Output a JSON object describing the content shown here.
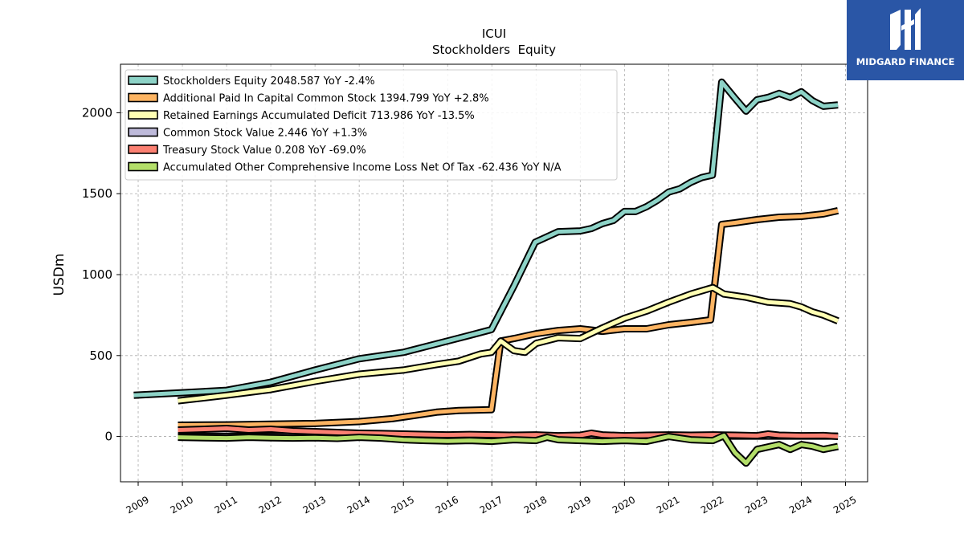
{
  "logo": {
    "text": "MIDGARD FINANCE",
    "bg_color": "#2a56a6"
  },
  "chart_data": {
    "type": "line",
    "title": "ICUI",
    "subtitle": "Stockholders  Equity",
    "xlabel": "",
    "ylabel": "USDm",
    "xlim": [
      2008.6,
      2025.5
    ],
    "ylim": [
      -280,
      2300
    ],
    "x_ticks": [
      "2009",
      "2010",
      "2011",
      "2012",
      "2013",
      "2014",
      "2015",
      "2016",
      "2017",
      "2018",
      "2019",
      "2020",
      "2021",
      "2022",
      "2023",
      "2024",
      "2025"
    ],
    "y_ticks": [
      0,
      500,
      1000,
      1500,
      2000
    ],
    "grid": true,
    "legend_position": "top-left",
    "series": [
      {
        "name": "Stockholders Equity  2048.587 YoY -2.4%",
        "color": "#8dd3c7",
        "points": [
          [
            2008.9,
            255
          ],
          [
            2010,
            270
          ],
          [
            2011,
            285
          ],
          [
            2012,
            335
          ],
          [
            2013,
            410
          ],
          [
            2014,
            480
          ],
          [
            2015,
            520
          ],
          [
            2016,
            590
          ],
          [
            2016.5,
            625
          ],
          [
            2016.99,
            660
          ],
          [
            2017.5,
            930
          ],
          [
            2017.98,
            1200
          ],
          [
            2018.5,
            1265
          ],
          [
            2019,
            1270
          ],
          [
            2019.25,
            1285
          ],
          [
            2019.5,
            1315
          ],
          [
            2019.75,
            1335
          ],
          [
            2020,
            1390
          ],
          [
            2020.25,
            1390
          ],
          [
            2020.5,
            1420
          ],
          [
            2020.75,
            1460
          ],
          [
            2021,
            1510
          ],
          [
            2021.25,
            1530
          ],
          [
            2021.5,
            1570
          ],
          [
            2021.75,
            1600
          ],
          [
            2021.99,
            1615
          ],
          [
            2022.2,
            2190
          ],
          [
            2022.5,
            2090
          ],
          [
            2022.75,
            2010
          ],
          [
            2023,
            2080
          ],
          [
            2023.25,
            2095
          ],
          [
            2023.5,
            2120
          ],
          [
            2023.75,
            2095
          ],
          [
            2024,
            2130
          ],
          [
            2024.25,
            2075
          ],
          [
            2024.5,
            2040
          ],
          [
            2024.83,
            2048.587
          ]
        ]
      },
      {
        "name": "Additional Paid In Capital Common Stock  1394.799 YoY +2.8%",
        "color": "#fdb462",
        "points": [
          [
            2009.9,
            70
          ],
          [
            2011,
            72
          ],
          [
            2012,
            76
          ],
          [
            2013,
            80
          ],
          [
            2014,
            92
          ],
          [
            2014.75,
            110
          ],
          [
            2015.25,
            130
          ],
          [
            2015.75,
            150
          ],
          [
            2016.25,
            160
          ],
          [
            2016.99,
            165
          ],
          [
            2017.2,
            590
          ],
          [
            2017.5,
            605
          ],
          [
            2018,
            635
          ],
          [
            2018.5,
            655
          ],
          [
            2019,
            665
          ],
          [
            2019.5,
            650
          ],
          [
            2020,
            665
          ],
          [
            2020.5,
            665
          ],
          [
            2021,
            690
          ],
          [
            2021.5,
            705
          ],
          [
            2021.95,
            720
          ],
          [
            2022.2,
            1310
          ],
          [
            2022.5,
            1320
          ],
          [
            2023,
            1340
          ],
          [
            2023.5,
            1355
          ],
          [
            2024,
            1360
          ],
          [
            2024.5,
            1375
          ],
          [
            2024.83,
            1394.799
          ]
        ]
      },
      {
        "name": "Retained Earnings Accumulated Deficit  713.986 YoY -13.5%",
        "color": "#ffffb3",
        "points": [
          [
            2009.9,
            220
          ],
          [
            2011,
            255
          ],
          [
            2012,
            290
          ],
          [
            2013,
            340
          ],
          [
            2014,
            385
          ],
          [
            2015,
            410
          ],
          [
            2015.75,
            445
          ],
          [
            2016.25,
            465
          ],
          [
            2016.75,
            510
          ],
          [
            2016.99,
            520
          ],
          [
            2017.2,
            590
          ],
          [
            2017.5,
            530
          ],
          [
            2017.75,
            520
          ],
          [
            2018,
            575
          ],
          [
            2018.5,
            610
          ],
          [
            2019,
            605
          ],
          [
            2019.5,
            670
          ],
          [
            2020,
            730
          ],
          [
            2020.5,
            775
          ],
          [
            2021,
            830
          ],
          [
            2021.5,
            880
          ],
          [
            2022,
            920
          ],
          [
            2022.25,
            880
          ],
          [
            2022.75,
            860
          ],
          [
            2023.25,
            830
          ],
          [
            2023.75,
            820
          ],
          [
            2024,
            800
          ],
          [
            2024.25,
            770
          ],
          [
            2024.5,
            750
          ],
          [
            2024.83,
            713.986
          ]
        ]
      },
      {
        "name": "Common Stock Value  2.446 YoY +1.3%",
        "color": "#bebada",
        "points": [
          [
            2009.9,
            1
          ],
          [
            2012,
            1.5
          ],
          [
            2015,
            1.8
          ],
          [
            2018,
            2.1
          ],
          [
            2021,
            2.3
          ],
          [
            2024.83,
            2.446
          ]
        ]
      },
      {
        "name": "Treasury Stock Value  0.208 YoY -69.0%",
        "color": "#fb8072",
        "points": [
          [
            2009.9,
            40
          ],
          [
            2010.5,
            45
          ],
          [
            2011,
            50
          ],
          [
            2011.5,
            40
          ],
          [
            2012,
            45
          ],
          [
            2012.5,
            35
          ],
          [
            2013,
            30
          ],
          [
            2013.5,
            25
          ],
          [
            2014,
            20
          ],
          [
            2014.5,
            18
          ],
          [
            2015,
            15
          ],
          [
            2015.5,
            12
          ],
          [
            2016,
            10
          ],
          [
            2016.5,
            12
          ],
          [
            2017,
            10
          ],
          [
            2017.5,
            8
          ],
          [
            2018,
            10
          ],
          [
            2018.5,
            5
          ],
          [
            2019,
            8
          ],
          [
            2019.25,
            20
          ],
          [
            2019.5,
            10
          ],
          [
            2020,
            5
          ],
          [
            2020.5,
            8
          ],
          [
            2021,
            10
          ],
          [
            2021.5,
            8
          ],
          [
            2022,
            10
          ],
          [
            2022.5,
            8
          ],
          [
            2023,
            5
          ],
          [
            2023.25,
            15
          ],
          [
            2023.5,
            8
          ],
          [
            2024,
            5
          ],
          [
            2024.5,
            6
          ],
          [
            2024.83,
            0.208
          ]
        ]
      },
      {
        "name": "Accumulated Other Comprehensive Income Loss Net Of Tax  -62.436 YoY N/A",
        "color": "#b3de69",
        "points": [
          [
            2009.9,
            -5
          ],
          [
            2010.5,
            -8
          ],
          [
            2011,
            -10
          ],
          [
            2011.5,
            -5
          ],
          [
            2012,
            -8
          ],
          [
            2012.5,
            -10
          ],
          [
            2013,
            -8
          ],
          [
            2013.5,
            -12
          ],
          [
            2014,
            -5
          ],
          [
            2014.5,
            -10
          ],
          [
            2015,
            -20
          ],
          [
            2015.5,
            -25
          ],
          [
            2016,
            -28
          ],
          [
            2016.5,
            -25
          ],
          [
            2017,
            -30
          ],
          [
            2017.5,
            -20
          ],
          [
            2018,
            -25
          ],
          [
            2018.25,
            -5
          ],
          [
            2018.5,
            -20
          ],
          [
            2019,
            -25
          ],
          [
            2019.5,
            -30
          ],
          [
            2020,
            -25
          ],
          [
            2020.5,
            -30
          ],
          [
            2021,
            0
          ],
          [
            2021.5,
            -20
          ],
          [
            2022,
            -25
          ],
          [
            2022.25,
            5
          ],
          [
            2022.5,
            -100
          ],
          [
            2022.75,
            -165
          ],
          [
            2023,
            -80
          ],
          [
            2023.5,
            -50
          ],
          [
            2023.75,
            -80
          ],
          [
            2024,
            -50
          ],
          [
            2024.25,
            -60
          ],
          [
            2024.5,
            -80
          ],
          [
            2024.83,
            -62.436
          ]
        ]
      }
    ]
  }
}
